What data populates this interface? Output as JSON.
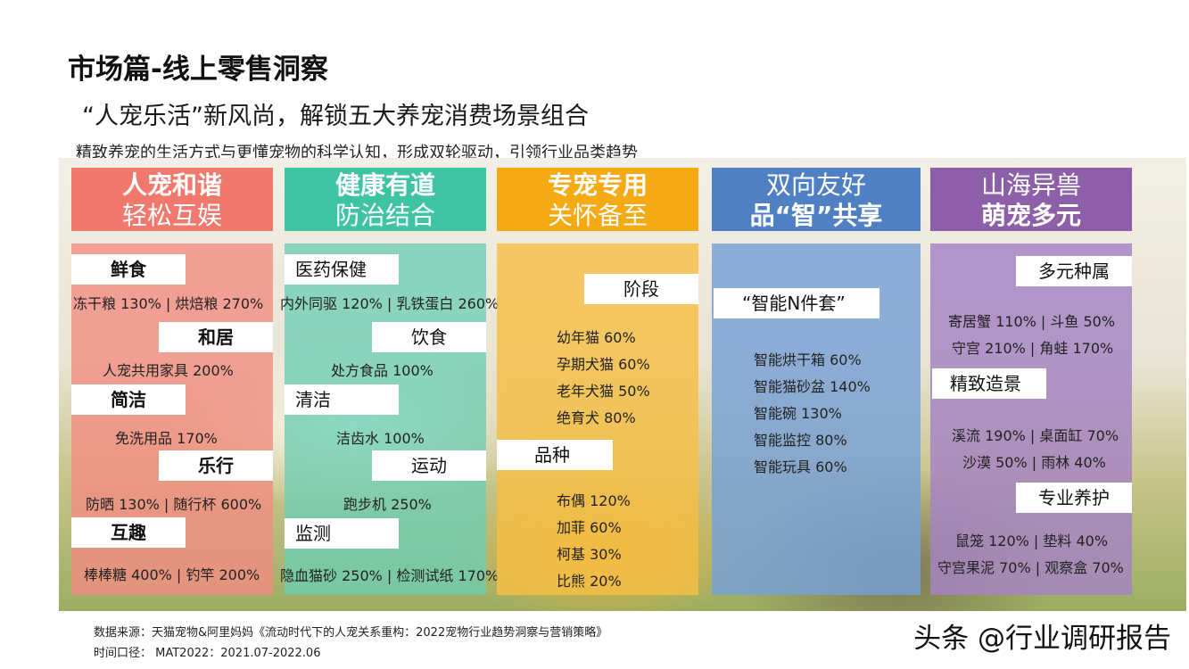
{
  "header": {
    "title": "市场篇-线上零售洞察",
    "subtitle": "“人宠乐活”新风尚，解锁五大养宠消费场景组合",
    "description": "精致养宠的生活方式与更懂宠物的科学认知，形成双轮驱动，引领行业品类趋势"
  },
  "columns": [
    {
      "line1": "人宠和谐",
      "line2": "轻松互娱",
      "head_color": "#f0786c",
      "panel_color": "rgba(242,140,130,0.80)",
      "sections": [
        {
          "label": "鲜食",
          "stats": [
            "冻干粮 130%  |  烘焙粮 270%"
          ]
        },
        {
          "label": "和居",
          "stats": [
            "人宠共用家具 200%"
          ]
        },
        {
          "label": "简洁",
          "stats": [
            "免洗用品 170%"
          ]
        },
        {
          "label": "乐行",
          "stats": [
            "防晒 130% | 随行杯 600%"
          ]
        },
        {
          "label": "互趣",
          "stats": [
            "棒棒糖 400% | 钓竿 200%"
          ]
        }
      ]
    },
    {
      "line1": "健康有道",
      "line2": "防治结合",
      "head_color": "#3fc4a3",
      "panel_color": "rgba(110,205,180,0.78)",
      "sections": [
        {
          "label": "医药保健",
          "stats": [
            "内外同驱 120% | 乳铁蛋白 260%"
          ]
        },
        {
          "label": "饮食",
          "stats": [
            "处方食品 100%"
          ]
        },
        {
          "label": "清洁",
          "stats": [
            "洁齿水 100%"
          ]
        },
        {
          "label": "运动",
          "stats": [
            "跑步机 250%"
          ]
        },
        {
          "label": "监测",
          "stats": [
            "隐血猫砂 250% | 检测试纸 170%"
          ]
        }
      ]
    },
    {
      "line1": "专宠专用",
      "line2": "关怀备至",
      "head_color": "#f5a912",
      "panel_color": "rgba(245,190,70,0.82)",
      "sections": [
        {
          "label": "阶段",
          "stats": [
            "幼年猫 60%",
            "孕期犬猫 60%",
            "老年犬猫 50%",
            "绝育犬 80%"
          ]
        },
        {
          "label": "品种",
          "stats": [
            "布偶 120%",
            "加菲 60%",
            "柯基 30%",
            "比熊 20%"
          ]
        }
      ]
    },
    {
      "line1": "双向友好",
      "line2": "品“智”共享",
      "head_color": "#4f80c4",
      "panel_color": "rgba(120,160,215,0.82)",
      "sections": [
        {
          "label": "“智能N件套”",
          "stats": [
            "智能烘干箱 60%",
            "智能猫砂盆 140%",
            "智能碗 130%",
            "智能监控 80%",
            "智能玩具 60%"
          ]
        }
      ]
    },
    {
      "line1": "山海异兽",
      "line2": "萌宠多元",
      "head_color": "#8d5fa8",
      "panel_color": "rgba(165,130,195,0.82)",
      "sections": [
        {
          "label": "多元种属",
          "stats": [
            "寄居蟹 110% | 斗鱼 50%",
            "守宫 210% | 角蛙 170%"
          ]
        },
        {
          "label": "精致造景",
          "stats": [
            "溪流 190% | 桌面缸 70%",
            "沙漠 50% | 雨林 40%"
          ]
        },
        {
          "label": "专业养护",
          "stats": [
            "鼠笼 120% | 垫料 40%",
            "守宫果泥 70% | 观察盒 70%"
          ]
        }
      ]
    }
  ],
  "footer": {
    "source": "数据来源：天猫宠物&阿里妈妈《流动时代下的人宠关系重构：2022宠物行业趋势洞察与营销策略》",
    "period": "时间口径：  MAT2022：2021.07-2022.06"
  },
  "watermark": "头条 @行业调研报告"
}
